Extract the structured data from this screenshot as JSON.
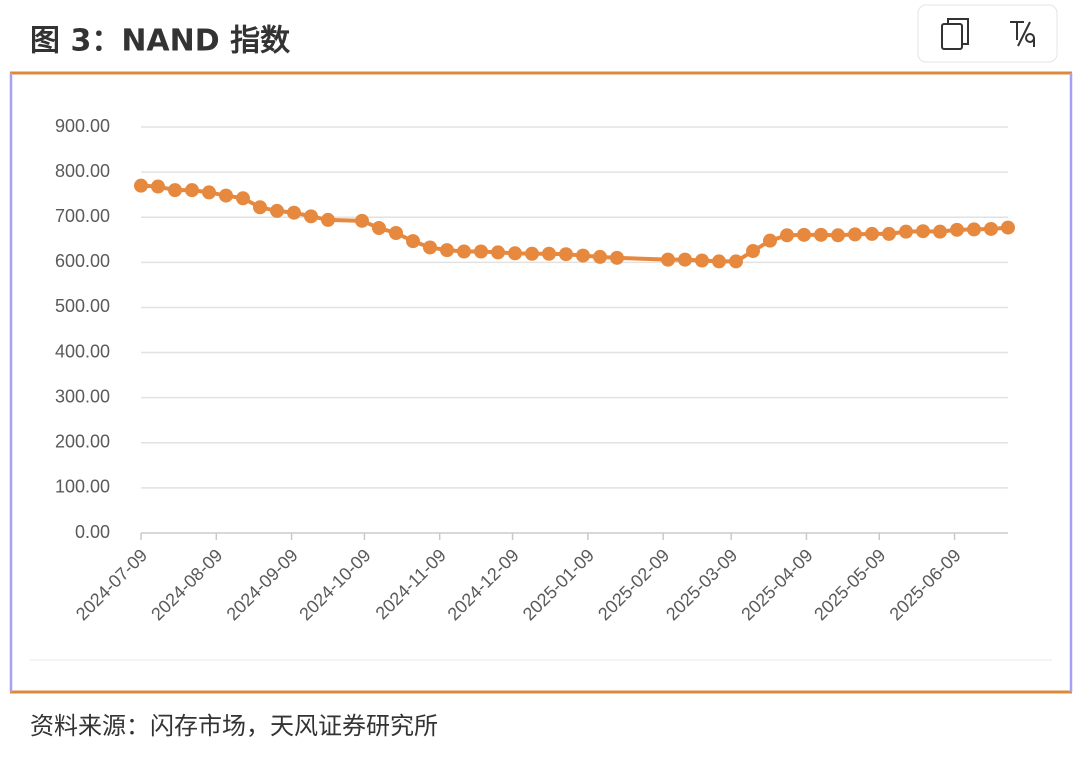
{
  "chart_data": {
    "type": "line",
    "title": "图 3：NAND 指数",
    "source": "资料来源：闪存市场，天风证券研究所",
    "color": "#e6893f",
    "grid": true,
    "x": [
      "2024-07-09",
      "2024-07-16",
      "2024-07-23",
      "2024-07-30",
      "2024-08-06",
      "2024-08-13",
      "2024-08-20",
      "2024-08-27",
      "2024-09-03",
      "2024-09-10",
      "2024-09-17",
      "2024-09-24",
      "2024-10-08",
      "2024-10-15",
      "2024-10-22",
      "2024-10-29",
      "2024-11-05",
      "2024-11-12",
      "2024-11-19",
      "2024-11-26",
      "2024-12-03",
      "2024-12-10",
      "2024-12-17",
      "2024-12-24",
      "2024-12-31",
      "2025-01-07",
      "2025-01-14",
      "2025-01-21",
      "2025-02-11",
      "2025-02-18",
      "2025-02-25",
      "2025-03-04",
      "2025-03-11",
      "2025-03-18",
      "2025-03-25",
      "2025-04-01",
      "2025-04-08",
      "2025-04-15",
      "2025-04-22",
      "2025-04-29",
      "2025-05-06",
      "2025-05-13",
      "2025-05-20",
      "2025-05-27",
      "2025-06-03",
      "2025-06-10",
      "2025-06-17",
      "2025-06-24",
      "2025-07-01"
    ],
    "values": [
      770,
      768,
      760,
      760,
      755,
      748,
      742,
      722,
      714,
      710,
      702,
      694,
      692,
      676,
      665,
      647,
      633,
      627,
      624,
      624,
      622,
      620,
      619,
      619,
      618,
      615,
      612,
      610,
      606,
      606,
      604,
      602,
      602,
      625,
      648,
      660,
      661,
      661,
      660,
      662,
      663,
      663,
      668,
      669,
      668,
      672,
      673,
      674,
      677
    ],
    "xlim": [
      "2024-07-09",
      "2025-07-01"
    ],
    "xticks": [
      "2024-07-09",
      "2024-08-09",
      "2024-09-09",
      "2024-10-09",
      "2024-11-09",
      "2024-12-09",
      "2025-01-09",
      "2025-02-09",
      "2025-03-09",
      "2025-04-09",
      "2025-05-09",
      "2025-06-09"
    ],
    "ylim": [
      0,
      900
    ],
    "yticks": [
      {
        "value": 0,
        "label": "0.00"
      },
      {
        "value": 100,
        "label": "100.00"
      },
      {
        "value": 200,
        "label": "200.00"
      },
      {
        "value": 300,
        "label": "300.00"
      },
      {
        "value": 400,
        "label": "400.00"
      },
      {
        "value": 500,
        "label": "500.00"
      },
      {
        "value": 600,
        "label": "600.00"
      },
      {
        "value": 700,
        "label": "700.00"
      },
      {
        "value": 800,
        "label": "800.00"
      },
      {
        "value": 900,
        "label": "900.00"
      }
    ]
  }
}
